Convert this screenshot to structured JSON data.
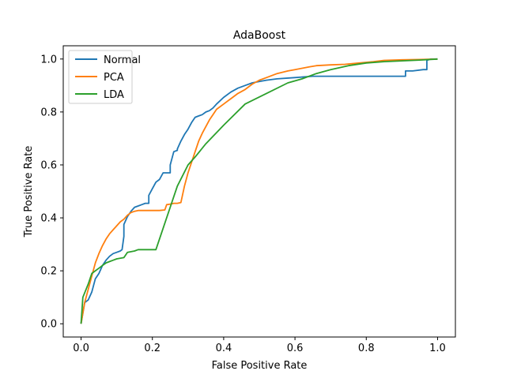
{
  "chart_data": {
    "type": "line",
    "title": "AdaBoost",
    "xlabel": "False Positive Rate",
    "ylabel": "True Positive Rate",
    "xlim": [
      -0.05,
      1.05
    ],
    "ylim": [
      -0.05,
      1.05
    ],
    "xticks": [
      0.0,
      0.2,
      0.4,
      0.6,
      0.8,
      1.0
    ],
    "yticks": [
      0.0,
      0.2,
      0.4,
      0.6,
      0.8,
      1.0
    ],
    "tick_labels_x": [
      "0.0",
      "0.2",
      "0.4",
      "0.6",
      "0.8",
      "1.0"
    ],
    "tick_labels_y": [
      "0.0",
      "0.2",
      "0.4",
      "0.6",
      "0.8",
      "1.0"
    ],
    "grid": false,
    "legend": "top-left",
    "series": [
      {
        "name": "Normal",
        "color": "#1f77b4",
        "x": [
          0.0,
          0.005,
          0.01,
          0.02,
          0.03,
          0.04,
          0.05,
          0.06,
          0.07,
          0.08,
          0.09,
          0.1,
          0.11,
          0.115,
          0.12,
          0.12,
          0.13,
          0.14,
          0.15,
          0.16,
          0.17,
          0.18,
          0.19,
          0.19,
          0.2,
          0.21,
          0.22,
          0.23,
          0.24,
          0.25,
          0.25,
          0.26,
          0.27,
          0.27,
          0.28,
          0.29,
          0.3,
          0.31,
          0.32,
          0.33,
          0.34,
          0.35,
          0.36,
          0.37,
          0.38,
          0.4,
          0.42,
          0.44,
          0.46,
          0.48,
          0.5,
          0.52,
          0.55,
          0.6,
          0.65,
          0.7,
          0.75,
          0.8,
          0.85,
          0.9,
          0.91,
          0.91,
          0.93,
          0.96,
          0.97,
          0.97,
          0.98,
          1.0
        ],
        "y": [
          0.0,
          0.04,
          0.08,
          0.09,
          0.12,
          0.17,
          0.19,
          0.22,
          0.24,
          0.255,
          0.265,
          0.27,
          0.275,
          0.28,
          0.33,
          0.375,
          0.405,
          0.425,
          0.44,
          0.445,
          0.45,
          0.455,
          0.455,
          0.485,
          0.51,
          0.535,
          0.545,
          0.57,
          0.57,
          0.57,
          0.6,
          0.65,
          0.655,
          0.66,
          0.69,
          0.715,
          0.735,
          0.76,
          0.78,
          0.785,
          0.79,
          0.8,
          0.805,
          0.815,
          0.83,
          0.855,
          0.875,
          0.89,
          0.9,
          0.91,
          0.915,
          0.92,
          0.925,
          0.93,
          0.935,
          0.935,
          0.935,
          0.935,
          0.935,
          0.935,
          0.935,
          0.955,
          0.955,
          0.96,
          0.96,
          0.995,
          1.0,
          1.0
        ]
      },
      {
        "name": "PCA",
        "color": "#ff7f0e",
        "x": [
          0.0,
          0.01,
          0.02,
          0.03,
          0.04,
          0.05,
          0.06,
          0.07,
          0.08,
          0.09,
          0.1,
          0.11,
          0.12,
          0.13,
          0.14,
          0.15,
          0.16,
          0.18,
          0.2,
          0.22,
          0.235,
          0.24,
          0.25,
          0.26,
          0.27,
          0.28,
          0.29,
          0.3,
          0.31,
          0.32,
          0.33,
          0.34,
          0.35,
          0.36,
          0.37,
          0.38,
          0.4,
          0.42,
          0.44,
          0.46,
          0.48,
          0.5,
          0.52,
          0.55,
          0.58,
          0.6,
          0.62,
          0.64,
          0.66,
          0.7,
          0.74,
          0.78,
          0.82,
          0.85,
          0.9,
          0.95,
          1.0
        ],
        "y": [
          0.0,
          0.08,
          0.13,
          0.18,
          0.23,
          0.265,
          0.295,
          0.32,
          0.34,
          0.355,
          0.37,
          0.385,
          0.395,
          0.41,
          0.42,
          0.425,
          0.428,
          0.428,
          0.428,
          0.428,
          0.43,
          0.45,
          0.452,
          0.455,
          0.455,
          0.458,
          0.52,
          0.57,
          0.61,
          0.65,
          0.69,
          0.72,
          0.745,
          0.77,
          0.79,
          0.81,
          0.83,
          0.85,
          0.87,
          0.885,
          0.905,
          0.92,
          0.93,
          0.945,
          0.955,
          0.96,
          0.965,
          0.97,
          0.975,
          0.978,
          0.98,
          0.985,
          0.99,
          0.995,
          0.997,
          0.998,
          1.0
        ]
      },
      {
        "name": "LDA",
        "color": "#2ca02c",
        "x": [
          0.0,
          0.005,
          0.02,
          0.03,
          0.04,
          0.05,
          0.06,
          0.07,
          0.08,
          0.09,
          0.1,
          0.12,
          0.13,
          0.15,
          0.16,
          0.18,
          0.21,
          0.27,
          0.3,
          0.32,
          0.35,
          0.4,
          0.46,
          0.52,
          0.58,
          0.62,
          0.66,
          0.7,
          0.75,
          0.8,
          0.85,
          0.9,
          0.95,
          1.0
        ],
        "y": [
          0.0,
          0.1,
          0.15,
          0.19,
          0.2,
          0.21,
          0.22,
          0.23,
          0.235,
          0.24,
          0.245,
          0.25,
          0.27,
          0.275,
          0.28,
          0.28,
          0.28,
          0.52,
          0.6,
          0.63,
          0.68,
          0.75,
          0.83,
          0.87,
          0.91,
          0.925,
          0.945,
          0.96,
          0.975,
          0.985,
          0.99,
          0.993,
          0.996,
          1.0
        ]
      }
    ]
  }
}
